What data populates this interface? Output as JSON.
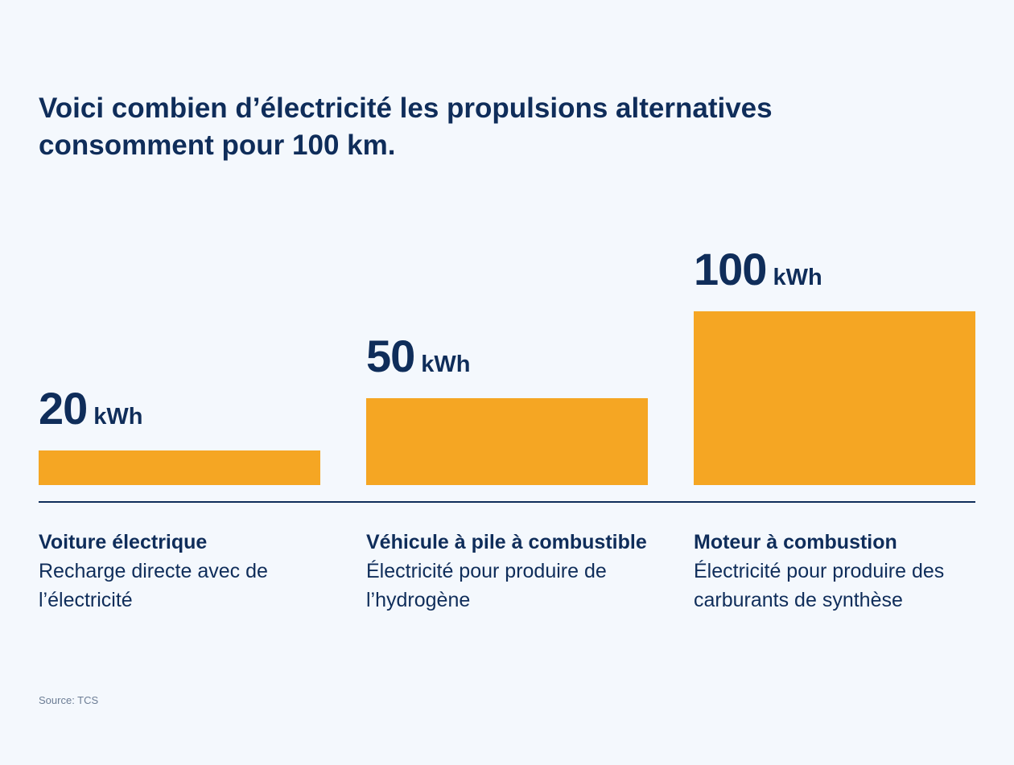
{
  "chart_data": {
    "type": "bar",
    "title": "Voici combien d’électricité les propulsions alternatives consomment pour 100 km.",
    "unit": "kWh",
    "categories": [
      {
        "name": "Voiture électrique",
        "description": "Recharge directe avec de l’électricité"
      },
      {
        "name": "Véhicule à pile à combustible",
        "description": "Électricité pour produire de l’hydrogène"
      },
      {
        "name": "Moteur à combustion",
        "description": "Électricité pour produire des carburants de synthèse"
      }
    ],
    "values": [
      20,
      50,
      100
    ],
    "value_labels": [
      "20",
      "50",
      "100"
    ],
    "ylim": [
      0,
      100
    ],
    "grid": false,
    "legend": "none",
    "colors": {
      "bar": "#f5a623",
      "text": "#0f2d5a",
      "background": "#f4f8fd"
    }
  },
  "footer": {
    "source": "Source: TCS"
  }
}
